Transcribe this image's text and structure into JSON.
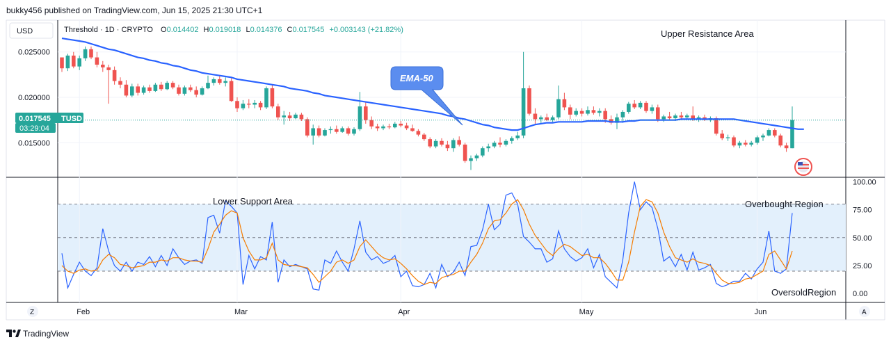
{
  "header": {
    "publisher_line": "bukky456 published on TradingView.com, Jun 15, 2025 21:30 UTC+1"
  },
  "currency": "USD",
  "ohlc_bar": {
    "symbol": "Threshold · 1D · CRYPTO",
    "open_label": "O",
    "open": "0.014402",
    "high_label": "H",
    "high": "0.019018",
    "low_label": "L",
    "low": "0.014376",
    "close_label": "C",
    "close": "0.017545",
    "change": "+0.003143 (+21.82%)"
  },
  "price_tag": {
    "price": "0.017545",
    "ticker": "TUSD",
    "countdown": "03:29:04"
  },
  "annotations": {
    "upper_resistance": "Upper Resistance Area",
    "lower_support": "Lower Support Area",
    "ema_callout": "EMA-50",
    "overbought": "Overbought Region",
    "oversold": "OversoldRegion"
  },
  "footer": {
    "logo_text": "TradingView",
    "left_button": "Z",
    "right_button": "A"
  },
  "colors": {
    "up": "#26a69a",
    "down": "#ef5350",
    "ema": "#2962ff",
    "rsi_k": "#2962ff",
    "rsi_d": "#f57c00",
    "band": "#e3f0fc",
    "callout": "#5b8def"
  },
  "chart_data": [
    {
      "type": "candlestick",
      "title": "",
      "x_tick_labels": [
        "Feb",
        "Mar",
        "Apr",
        "May",
        "Jun"
      ],
      "y_tick_labels": [
        "0.025000",
        "0.020000",
        "0.015000"
      ],
      "ylim": [
        0.0112,
        0.0285
      ],
      "grid": true,
      "ohlc": [
        [
          0.0244,
          0.0244,
          0.0228,
          0.0232
        ],
        [
          0.0232,
          0.0248,
          0.0229,
          0.0246
        ],
        [
          0.0246,
          0.025,
          0.0232,
          0.0234
        ],
        [
          0.0234,
          0.0246,
          0.023,
          0.0243
        ],
        [
          0.0243,
          0.0256,
          0.024,
          0.0253
        ],
        [
          0.0253,
          0.0256,
          0.0242,
          0.0244
        ],
        [
          0.0244,
          0.025,
          0.0233,
          0.0236
        ],
        [
          0.0236,
          0.024,
          0.0228,
          0.0233
        ],
        [
          0.0233,
          0.0236,
          0.0193,
          0.023
        ],
        [
          0.023,
          0.0234,
          0.0214,
          0.0218
        ],
        [
          0.0218,
          0.0222,
          0.021,
          0.0214
        ],
        [
          0.0214,
          0.0219,
          0.02,
          0.0202
        ],
        [
          0.0202,
          0.0215,
          0.02,
          0.0212
        ],
        [
          0.0212,
          0.0215,
          0.0202,
          0.0205
        ],
        [
          0.0205,
          0.0213,
          0.0203,
          0.0211
        ],
        [
          0.0211,
          0.0214,
          0.0205,
          0.0207
        ],
        [
          0.0207,
          0.0216,
          0.0206,
          0.0214
        ],
        [
          0.0214,
          0.0217,
          0.0207,
          0.0209
        ],
        [
          0.0209,
          0.0218,
          0.0208,
          0.0216
        ],
        [
          0.0216,
          0.0218,
          0.0209,
          0.0211
        ],
        [
          0.0211,
          0.0214,
          0.0202,
          0.0204
        ],
        [
          0.0204,
          0.0213,
          0.0202,
          0.0211
        ],
        [
          0.0211,
          0.0214,
          0.0206,
          0.0208
        ],
        [
          0.0208,
          0.0212,
          0.02,
          0.0203
        ],
        [
          0.0203,
          0.0212,
          0.0202,
          0.021
        ],
        [
          0.021,
          0.0224,
          0.0209,
          0.0216
        ],
        [
          0.0216,
          0.0222,
          0.0213,
          0.022
        ],
        [
          0.022,
          0.0224,
          0.0214,
          0.0216
        ],
        [
          0.0216,
          0.0222,
          0.0212,
          0.0218
        ],
        [
          0.0218,
          0.0221,
          0.0195,
          0.0196
        ],
        [
          0.0196,
          0.02,
          0.0184,
          0.0188
        ],
        [
          0.0188,
          0.0197,
          0.0186,
          0.0193
        ],
        [
          0.0193,
          0.0198,
          0.0188,
          0.0192
        ],
        [
          0.0192,
          0.0197,
          0.0188,
          0.0194
        ],
        [
          0.0194,
          0.0196,
          0.0186,
          0.0189
        ],
        [
          0.0189,
          0.0212,
          0.0187,
          0.021
        ],
        [
          0.021,
          0.0214,
          0.0188,
          0.019
        ],
        [
          0.019,
          0.0193,
          0.0175,
          0.0178
        ],
        [
          0.0178,
          0.0185,
          0.017,
          0.018
        ],
        [
          0.018,
          0.0184,
          0.0174,
          0.0177
        ],
        [
          0.0177,
          0.0183,
          0.0176,
          0.0181
        ],
        [
          0.0181,
          0.0183,
          0.0174,
          0.0176
        ],
        [
          0.0176,
          0.0178,
          0.0156,
          0.0158
        ],
        [
          0.0158,
          0.017,
          0.0148,
          0.0166
        ],
        [
          0.0166,
          0.0169,
          0.0156,
          0.0158
        ],
        [
          0.0158,
          0.0166,
          0.0157,
          0.0164
        ],
        [
          0.0164,
          0.0168,
          0.016,
          0.0165
        ],
        [
          0.0165,
          0.0169,
          0.016,
          0.0162
        ],
        [
          0.0162,
          0.0168,
          0.0161,
          0.0166
        ],
        [
          0.0166,
          0.0168,
          0.0158,
          0.016
        ],
        [
          0.016,
          0.0167,
          0.0158,
          0.0165
        ],
        [
          0.0165,
          0.0206,
          0.0163,
          0.019
        ],
        [
          0.019,
          0.0195,
          0.0171,
          0.0175
        ],
        [
          0.0175,
          0.0179,
          0.0165,
          0.0168
        ],
        [
          0.0168,
          0.0171,
          0.0163,
          0.0166
        ],
        [
          0.0166,
          0.017,
          0.0164,
          0.0168
        ],
        [
          0.0168,
          0.0171,
          0.0165,
          0.0167
        ],
        [
          0.0167,
          0.0173,
          0.0166,
          0.0171
        ],
        [
          0.0171,
          0.0174,
          0.0167,
          0.0169
        ],
        [
          0.0169,
          0.0172,
          0.0164,
          0.0166
        ],
        [
          0.0166,
          0.017,
          0.0162,
          0.0163
        ],
        [
          0.0163,
          0.0165,
          0.0157,
          0.0159
        ],
        [
          0.0159,
          0.0161,
          0.0152,
          0.0154
        ],
        [
          0.0154,
          0.0156,
          0.0144,
          0.0146
        ],
        [
          0.0146,
          0.0154,
          0.0144,
          0.0152
        ],
        [
          0.0152,
          0.0155,
          0.0146,
          0.0148
        ],
        [
          0.0148,
          0.0152,
          0.0141,
          0.0144
        ],
        [
          0.0144,
          0.0155,
          0.014,
          0.0153
        ],
        [
          0.0153,
          0.0157,
          0.0146,
          0.0148
        ],
        [
          0.0148,
          0.015,
          0.0128,
          0.013
        ],
        [
          0.013,
          0.0136,
          0.012,
          0.0133
        ],
        [
          0.0133,
          0.0138,
          0.013,
          0.0136
        ],
        [
          0.0136,
          0.0146,
          0.0134,
          0.0144
        ],
        [
          0.0144,
          0.0149,
          0.014,
          0.0146
        ],
        [
          0.0146,
          0.0152,
          0.0144,
          0.015
        ],
        [
          0.015,
          0.0156,
          0.0145,
          0.0148
        ],
        [
          0.0148,
          0.0154,
          0.0146,
          0.0152
        ],
        [
          0.0152,
          0.0157,
          0.0149,
          0.0155
        ],
        [
          0.0155,
          0.0162,
          0.0153,
          0.0158
        ],
        [
          0.0158,
          0.025,
          0.0155,
          0.021
        ],
        [
          0.021,
          0.0213,
          0.018,
          0.0182
        ],
        [
          0.0182,
          0.0188,
          0.017,
          0.0176
        ],
        [
          0.0176,
          0.018,
          0.0171,
          0.0178
        ],
        [
          0.0178,
          0.0182,
          0.0174,
          0.0175
        ],
        [
          0.0175,
          0.018,
          0.0173,
          0.0178
        ],
        [
          0.0178,
          0.0213,
          0.0176,
          0.0198
        ],
        [
          0.0198,
          0.0205,
          0.0186,
          0.0189
        ],
        [
          0.0189,
          0.0192,
          0.0176,
          0.0181
        ],
        [
          0.0181,
          0.0188,
          0.0179,
          0.0185
        ],
        [
          0.0185,
          0.0188,
          0.0179,
          0.0182
        ],
        [
          0.0182,
          0.019,
          0.018,
          0.0186
        ],
        [
          0.0186,
          0.019,
          0.0181,
          0.0183
        ],
        [
          0.0183,
          0.0188,
          0.0179,
          0.0185
        ],
        [
          0.0185,
          0.0188,
          0.0172,
          0.0176
        ],
        [
          0.0176,
          0.018,
          0.017,
          0.0172
        ],
        [
          0.0172,
          0.0182,
          0.0165,
          0.0178
        ],
        [
          0.0178,
          0.0186,
          0.0172,
          0.0184
        ],
        [
          0.0184,
          0.0195,
          0.0182,
          0.0193
        ],
        [
          0.0193,
          0.0197,
          0.0187,
          0.0189
        ],
        [
          0.0189,
          0.0196,
          0.0187,
          0.0194
        ],
        [
          0.0194,
          0.0196,
          0.0183,
          0.0185
        ],
        [
          0.0185,
          0.0192,
          0.0182,
          0.0189
        ],
        [
          0.0189,
          0.0192,
          0.0173,
          0.0176
        ],
        [
          0.0176,
          0.0181,
          0.0173,
          0.0179
        ],
        [
          0.0179,
          0.0184,
          0.0175,
          0.0177
        ],
        [
          0.0177,
          0.0182,
          0.0174,
          0.018
        ],
        [
          0.018,
          0.0184,
          0.0175,
          0.0178
        ],
        [
          0.0178,
          0.0182,
          0.0176,
          0.018
        ],
        [
          0.018,
          0.019,
          0.0174,
          0.0176
        ],
        [
          0.0176,
          0.018,
          0.0173,
          0.0178
        ],
        [
          0.0178,
          0.0181,
          0.0174,
          0.0175
        ],
        [
          0.0175,
          0.0179,
          0.0173,
          0.0177
        ],
        [
          0.0177,
          0.0179,
          0.0158,
          0.016
        ],
        [
          0.016,
          0.0164,
          0.0153,
          0.0155
        ],
        [
          0.0155,
          0.0159,
          0.0152,
          0.0156
        ],
        [
          0.0156,
          0.0158,
          0.0145,
          0.0147
        ],
        [
          0.0147,
          0.0152,
          0.0144,
          0.015
        ],
        [
          0.015,
          0.0153,
          0.0146,
          0.0148
        ],
        [
          0.0148,
          0.0152,
          0.0146,
          0.015
        ],
        [
          0.015,
          0.0158,
          0.0148,
          0.0156
        ],
        [
          0.0156,
          0.016,
          0.0152,
          0.0158
        ],
        [
          0.0158,
          0.0166,
          0.0157,
          0.0164
        ],
        [
          0.0164,
          0.0166,
          0.0156,
          0.0158
        ],
        [
          0.0158,
          0.016,
          0.0145,
          0.0147
        ],
        [
          0.0147,
          0.015,
          0.014,
          0.0144
        ],
        [
          0.0144,
          0.019,
          0.0144,
          0.0175
        ]
      ],
      "ema50": [
        0.0265,
        0.0264,
        0.0263,
        0.0262,
        0.0261,
        0.0259,
        0.0257,
        0.0255,
        0.0253,
        0.0252,
        0.025,
        0.0248,
        0.0246,
        0.0244,
        0.0243,
        0.0241,
        0.024,
        0.0238,
        0.0237,
        0.0235,
        0.0234,
        0.0232,
        0.023,
        0.0229,
        0.0227,
        0.0226,
        0.0225,
        0.0224,
        0.0223,
        0.0222,
        0.022,
        0.0219,
        0.0218,
        0.0217,
        0.0216,
        0.0215,
        0.0214,
        0.0213,
        0.0212,
        0.021,
        0.0209,
        0.0208,
        0.0207,
        0.0205,
        0.0204,
        0.0202,
        0.0201,
        0.02,
        0.0199,
        0.0198,
        0.0197,
        0.0196,
        0.0195,
        0.0194,
        0.0193,
        0.0192,
        0.0191,
        0.019,
        0.0189,
        0.0188,
        0.0187,
        0.0186,
        0.0185,
        0.0184,
        0.0183,
        0.0182,
        0.018,
        0.0179,
        0.0177,
        0.0176,
        0.0174,
        0.0172,
        0.017,
        0.0169,
        0.0167,
        0.0166,
        0.0165,
        0.0164,
        0.0164,
        0.0166,
        0.0168,
        0.017,
        0.0171,
        0.0172,
        0.0172,
        0.0173,
        0.0173,
        0.0173,
        0.0173,
        0.0173,
        0.0174,
        0.0174,
        0.0174,
        0.0174,
        0.0173,
        0.0173,
        0.0173,
        0.0174,
        0.0174,
        0.0175,
        0.0175,
        0.0175,
        0.0175,
        0.0175,
        0.0175,
        0.0175,
        0.0176,
        0.0176,
        0.0176,
        0.0176,
        0.0176,
        0.0176,
        0.0176,
        0.0176,
        0.0176,
        0.0176,
        0.0175,
        0.0174,
        0.0173,
        0.0172,
        0.0171,
        0.017,
        0.0169,
        0.0168,
        0.0167,
        0.0166,
        0.0165,
        0.0165
      ]
    },
    {
      "type": "line",
      "title": "",
      "y_tick_labels": [
        "100.00",
        "75.00",
        "50.00",
        "25.00",
        "0.00"
      ],
      "ylim": [
        -8,
        104
      ],
      "band": [
        20,
        80
      ],
      "series": [
        {
          "values": [
            36,
            5,
            17,
            28,
            20,
            16,
            23,
            58,
            38,
            25,
            20,
            28,
            20,
            28,
            26,
            33,
            24,
            34,
            25,
            40,
            32,
            26,
            29,
            30,
            27,
            68,
            70,
            54,
            83,
            78,
            72,
            8,
            34,
            22,
            33,
            30,
            64,
            10,
            30,
            24,
            26,
            24,
            22,
            4,
            3,
            30,
            27,
            38,
            28,
            20,
            40,
            65,
            37,
            30,
            33,
            27,
            29,
            34,
            15,
            20,
            7,
            6,
            8,
            18,
            5,
            26,
            15,
            19,
            28,
            16,
            42,
            43,
            57,
            80,
            57,
            62,
            88,
            90,
            80,
            51,
            46,
            40,
            40,
            28,
            31,
            56,
            40,
            33,
            29,
            32,
            40,
            23,
            35,
            15,
            10,
            5,
            30,
            72,
            100,
            75,
            82,
            77,
            58,
            29,
            33,
            24,
            35,
            21,
            37,
            21,
            23,
            26,
            9,
            6,
            8,
            11,
            11,
            18,
            13,
            22,
            28,
            56,
            20,
            18,
            22,
            72
          ]
        },
        {
          "values": [
            25,
            20,
            18,
            21,
            22,
            20,
            21,
            30,
            35,
            32,
            26,
            25,
            23,
            24,
            25,
            28,
            28,
            30,
            29,
            32,
            32,
            30,
            29,
            29,
            28,
            40,
            55,
            62,
            70,
            74,
            72,
            50,
            38,
            30,
            30,
            32,
            45,
            30,
            26,
            25,
            25,
            24,
            23,
            17,
            10,
            15,
            20,
            28,
            30,
            27,
            30,
            42,
            48,
            42,
            36,
            32,
            30,
            31,
            27,
            22,
            16,
            11,
            8,
            10,
            9,
            14,
            16,
            17,
            20,
            20,
            28,
            35,
            45,
            58,
            65,
            66,
            72,
            80,
            84,
            75,
            62,
            52,
            45,
            38,
            34,
            40,
            44,
            42,
            38,
            34,
            35,
            32,
            32,
            27,
            20,
            12,
            12,
            28,
            55,
            78,
            84,
            82,
            72,
            55,
            42,
            32,
            30,
            28,
            31,
            28,
            27,
            25,
            18,
            12,
            9,
            9,
            10,
            13,
            14,
            17,
            20,
            35,
            38,
            30,
            22,
            38
          ]
        }
      ]
    }
  ]
}
